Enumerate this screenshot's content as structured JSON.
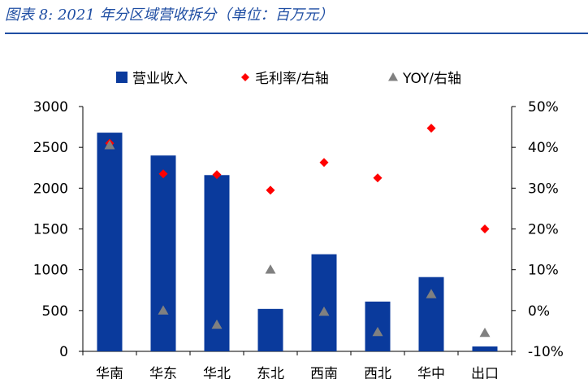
{
  "figure": {
    "title": "图表 8:  2021 年分区域营收拆分（单位：百万元）"
  },
  "colors": {
    "title_blue": "#1f4ea3",
    "bar_blue": "#0a3a9c",
    "marker_red": "#ff0000",
    "marker_gray": "#808080",
    "axis": "#000000"
  },
  "chart_data": {
    "type": "bar",
    "categories": [
      "华南",
      "华东",
      "华北",
      "东北",
      "西南",
      "西北",
      "华中",
      "出口"
    ],
    "series": [
      {
        "name": "营业收入",
        "type": "bar",
        "axis": "left",
        "values": [
          2680,
          2400,
          2160,
          520,
          1190,
          610,
          910,
          60
        ]
      },
      {
        "name": "毛利率/右轴",
        "type": "scatter",
        "axis": "right",
        "marker": "diamond",
        "values": [
          41.0,
          33.5,
          33.3,
          29.5,
          36.3,
          32.5,
          44.7,
          20.0
        ]
      },
      {
        "name": "YOY/右轴",
        "type": "scatter",
        "axis": "right",
        "marker": "triangle",
        "values": [
          40.5,
          0.0,
          -3.5,
          10.0,
          -0.3,
          -5.3,
          4.0,
          -5.5
        ]
      }
    ],
    "y_left": {
      "ylim": [
        0,
        3000
      ],
      "ticks": [
        0,
        500,
        1000,
        1500,
        2000,
        2500,
        3000
      ],
      "tick_labels": [
        "0",
        "500",
        "1000",
        "1500",
        "2000",
        "2500",
        "3000"
      ]
    },
    "y_right": {
      "ylim": [
        -10,
        50
      ],
      "ticks": [
        -10,
        0,
        10,
        20,
        30,
        40,
        50
      ],
      "tick_labels": [
        "-10%",
        "0%",
        "10%",
        "20%",
        "30%",
        "40%",
        "50%"
      ]
    },
    "legend": {
      "position": "top",
      "items": [
        "营业收入",
        "毛利率/右轴",
        "YOY/右轴"
      ]
    },
    "grid": false
  }
}
